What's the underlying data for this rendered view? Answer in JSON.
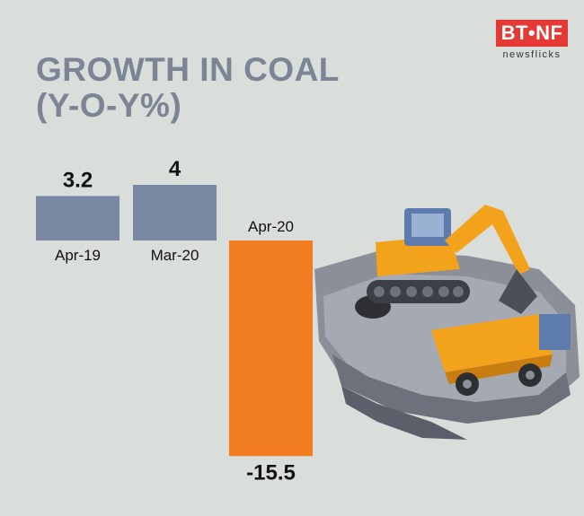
{
  "brand": {
    "logo_text": "BT•NF",
    "logo_sub": "newsflicks",
    "logo_color": "#e53935"
  },
  "title_lines": [
    "GROWTH IN COAL",
    "(Y-O-Y%)"
  ],
  "illustration": "coal-mine-excavator-truck-illustration",
  "chart_data": {
    "type": "bar",
    "categories": [
      "Apr-19",
      "Mar-20",
      "Apr-20"
    ],
    "values": [
      3.2,
      4,
      -15.5
    ],
    "value_labels": [
      "3.2",
      "4",
      "-15.5"
    ],
    "title": "GROWTH IN COAL (Y-O-Y%)",
    "xlabel": "",
    "ylabel": "",
    "ylim": [
      -15.5,
      4
    ],
    "grid": false,
    "legend": "none",
    "colors": [
      "#7a89a3",
      "#7a89a3",
      "#f27c20"
    ]
  }
}
